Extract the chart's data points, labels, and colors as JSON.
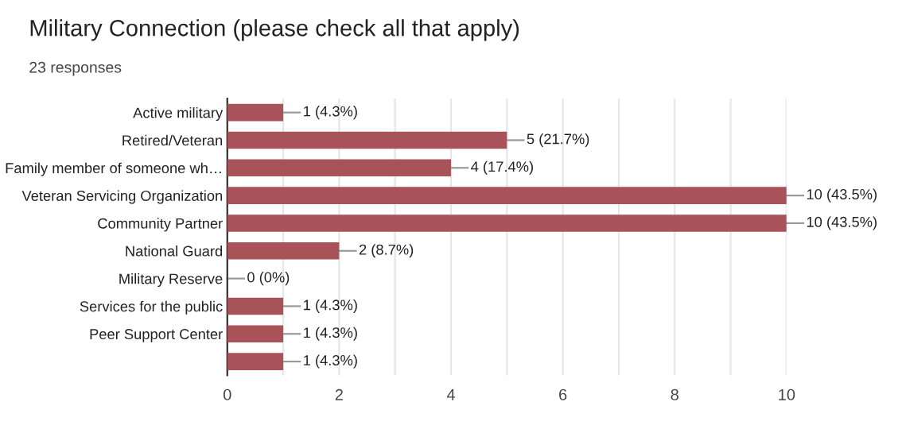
{
  "chart_data": {
    "type": "bar",
    "orientation": "horizontal",
    "title": "Military Connection (please check all that apply)",
    "subtitle": "23 responses",
    "categories": [
      "Active military",
      "Retired/Veteran",
      "Family member of someone wh…",
      "Veteran Servicing Organization",
      "Community Partner",
      "National Guard",
      "Military Reserve",
      "Services for the public",
      "Peer Support Center",
      null
    ],
    "values": [
      1,
      5,
      4,
      10,
      10,
      2,
      0,
      1,
      1,
      1
    ],
    "value_labels": [
      "1 (4.3%)",
      "5 (21.7%)",
      "4 (17.4%)",
      "10 (43.5%)",
      "10 (43.5%)",
      "2 (8.7%)",
      "0 (0%)",
      "1 (4.3%)",
      "1 (4.3%)",
      "1 (4.3%)"
    ],
    "color": "#a8525a",
    "xlim": [
      0,
      10
    ],
    "xticks": [
      0,
      {
        "value": 1,
        "label": null
      },
      2,
      {
        "value": 3,
        "label": null
      },
      4,
      {
        "value": 5,
        "label": null
      },
      6,
      {
        "value": 7,
        "label": null
      },
      8,
      {
        "value": 9,
        "label": null
      },
      10
    ],
    "grid": "x",
    "legend": false
  }
}
